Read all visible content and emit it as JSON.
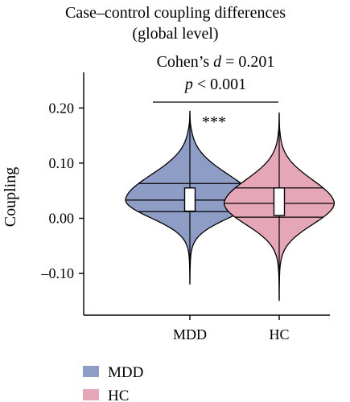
{
  "chart_data": {
    "type": "violin",
    "title_line1": "Case–control coupling differences",
    "title_line2": "(global level)",
    "effect_size": {
      "prefix": "Cohen’s ",
      "symbol": "d",
      "value_text": " = 0.201"
    },
    "p_value": {
      "symbol": "p",
      "value_text": " < 0.001"
    },
    "significance": "***",
    "ylabel": "Coupling",
    "ylim": [
      -0.16,
      0.25
    ],
    "yticks": [
      {
        "value": 0.2,
        "label": "0.20"
      },
      {
        "value": 0.1,
        "label": "0.10"
      },
      {
        "value": 0.0,
        "label": "0.00"
      },
      {
        "value": -0.1,
        "label": "–0.10"
      }
    ],
    "categories": [
      "MDD",
      "HC"
    ],
    "series": [
      {
        "name": "MDD",
        "color": "#8e9dc6",
        "min": -0.12,
        "max": 0.195,
        "q1": 0.012,
        "median": 0.033,
        "q3": 0.063,
        "box_low": 0.013,
        "box_high": 0.055
      },
      {
        "name": "HC",
        "color": "#e5a6b7",
        "min": -0.15,
        "max": 0.192,
        "q1": 0.002,
        "median": 0.027,
        "q3": 0.055,
        "box_low": 0.005,
        "box_high": 0.055
      }
    ],
    "legend": {
      "placement": "bottom-left",
      "items": [
        {
          "label": "MDD",
          "color": "#8e9dc6"
        },
        {
          "label": "HC",
          "color": "#e5a6b7"
        }
      ]
    }
  }
}
